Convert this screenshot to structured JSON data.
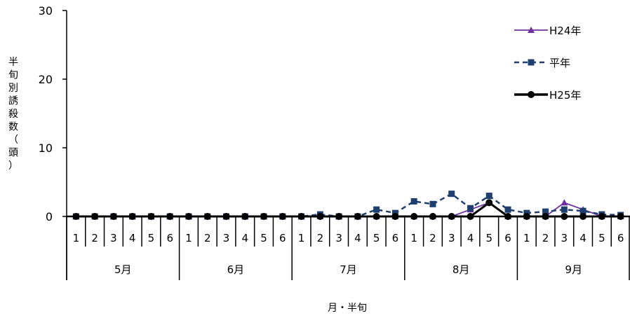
{
  "chart_data": {
    "type": "line",
    "title": "",
    "xlabel": "月・半旬",
    "ylabel": "半旬別誘殺数（頭）",
    "ylim": [
      0,
      30
    ],
    "yticks": [
      0,
      10,
      20,
      30
    ],
    "months": [
      "5月",
      "6月",
      "7月",
      "8月",
      "9月"
    ],
    "categories": [
      "1",
      "2",
      "3",
      "4",
      "5",
      "6",
      "1",
      "2",
      "3",
      "4",
      "5",
      "6",
      "1",
      "2",
      "3",
      "4",
      "5",
      "6",
      "1",
      "2",
      "3",
      "4",
      "5",
      "6",
      "1",
      "2",
      "3",
      "4",
      "5",
      "6"
    ],
    "legend_position": "top-right",
    "series": [
      {
        "name": "H24年",
        "color": "#7030a0",
        "style": "solid-triangle",
        "values": [
          0,
          0,
          0,
          0,
          0,
          0,
          0,
          0,
          0,
          0,
          0,
          0,
          0,
          0,
          0,
          0,
          0,
          0,
          0,
          0,
          0,
          1,
          2,
          0,
          0,
          0,
          2,
          1,
          0,
          0
        ]
      },
      {
        "name": "平年",
        "color": "#1f3f6e",
        "style": "dashed-square",
        "values": [
          0,
          0,
          0,
          0,
          0,
          0,
          0,
          0,
          0,
          0,
          0,
          0,
          0,
          0.3,
          0,
          0,
          1,
          0.5,
          2.2,
          1.8,
          3.3,
          1.2,
          3,
          1,
          0.5,
          0.7,
          1,
          0.8,
          0.3,
          0.2
        ]
      },
      {
        "name": "H25年",
        "color": "#000000",
        "style": "solid-circle",
        "values": [
          0,
          0,
          0,
          0,
          0,
          0,
          0,
          0,
          0,
          0,
          0,
          0,
          0,
          0,
          0,
          0,
          0,
          0,
          0,
          0,
          0,
          0,
          2,
          0,
          0,
          0,
          0,
          0,
          0,
          0
        ]
      }
    ]
  }
}
